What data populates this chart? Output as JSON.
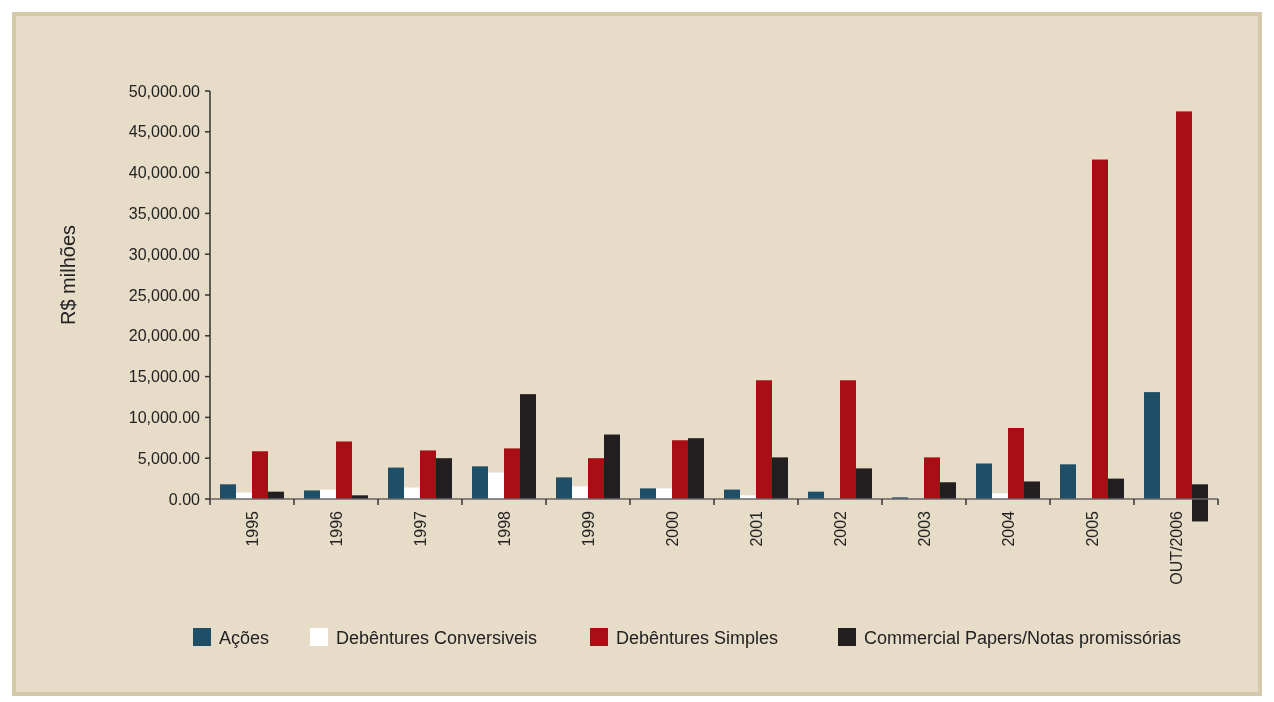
{
  "chart_data": {
    "type": "bar",
    "ylabel": "R$ milhões",
    "categories": [
      "1995",
      "1996",
      "1997",
      "1998",
      "1999",
      "2000",
      "2001",
      "2002",
      "2003",
      "2004",
      "2005",
      "OUT/2006"
    ],
    "series": [
      {
        "name": "Ações",
        "color": "#1f4e67",
        "values": [
          1800,
          1050,
          3850,
          4000,
          2650,
          1300,
          1150,
          900,
          200,
          4350,
          4250,
          13100
        ]
      },
      {
        "name": "Debêntures Conversiveis",
        "color": "#ffffff",
        "values": [
          800,
          1150,
          1400,
          3250,
          1550,
          1300,
          450,
          null,
          null,
          700,
          null,
          null
        ]
      },
      {
        "name": "Debêntures Simples",
        "color": "#a80e14",
        "values": [
          5850,
          7050,
          5950,
          6200,
          5000,
          7200,
          14550,
          14550,
          5100,
          8700,
          41600,
          47500
        ]
      },
      {
        "name": "Commercial Papers/Notas promissórias",
        "color": "#231f20",
        "values": [
          900,
          450,
          5000,
          12850,
          7900,
          7450,
          5100,
          3750,
          2050,
          2150,
          2500,
          4550
        ],
        "base": [
          0,
          0,
          0,
          0,
          0,
          0,
          0,
          0,
          0,
          0,
          0,
          -2750
        ]
      }
    ],
    "ylim": [
      0,
      50000
    ],
    "yticks": [
      {
        "value": 0,
        "label": "0.00"
      },
      {
        "value": 5000,
        "label": "5,000.00"
      },
      {
        "value": 10000,
        "label": "10,000.00"
      },
      {
        "value": 15000,
        "label": "15,000.00"
      },
      {
        "value": 20000,
        "label": "20,000.00"
      },
      {
        "value": 25000,
        "label": "25,000.00"
      },
      {
        "value": 30000,
        "label": "30,000.00"
      },
      {
        "value": 35000,
        "label": "35,000.00"
      },
      {
        "value": 40000,
        "label": "40,000.00"
      },
      {
        "value": 45000,
        "label": "45,000.00"
      },
      {
        "value": 50000,
        "label": "50,000.00"
      }
    ],
    "grid": false,
    "legend": "bottom"
  }
}
